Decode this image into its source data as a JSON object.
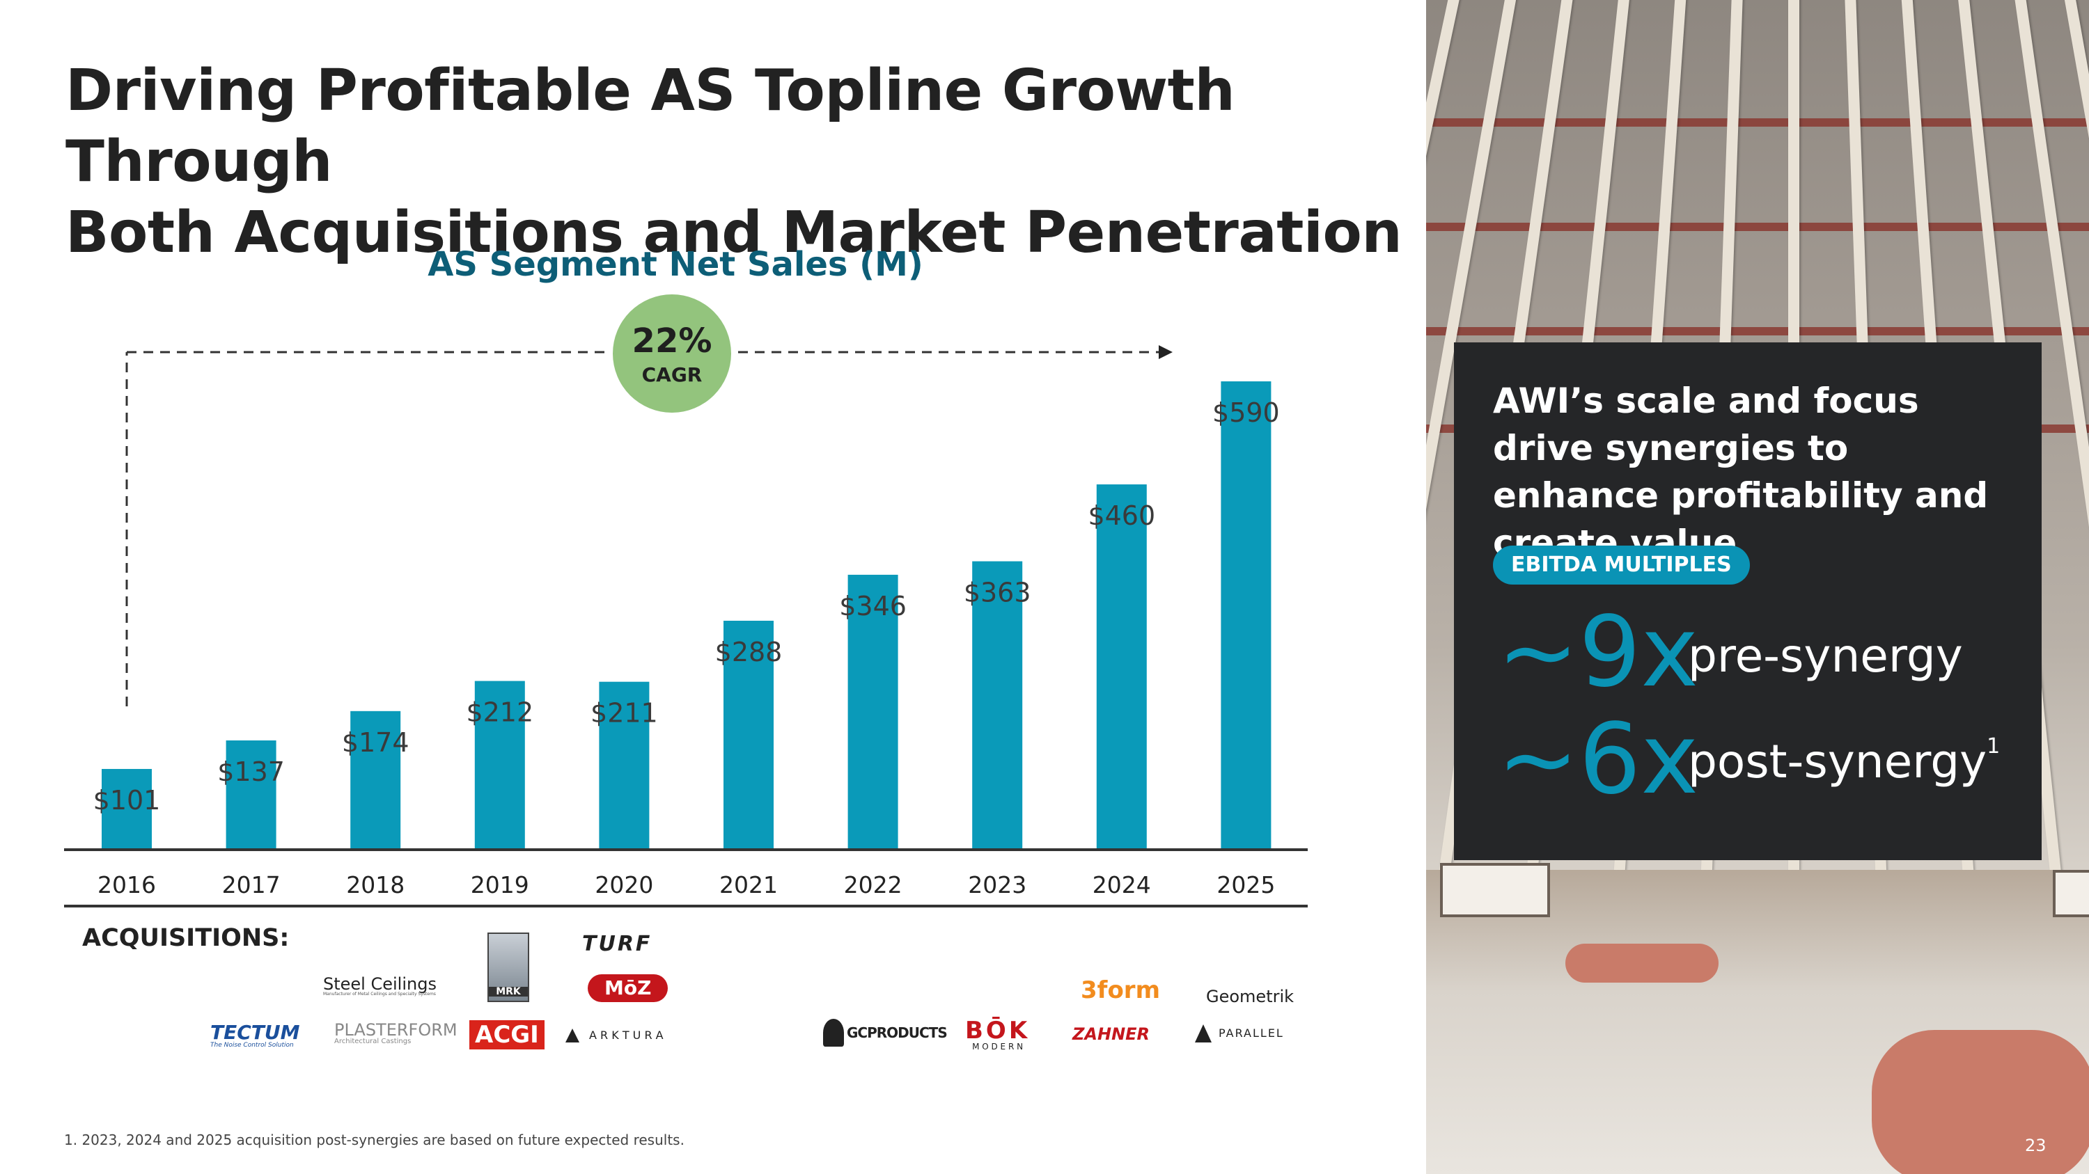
{
  "page": {
    "title_line1": "Driving Profitable AS Topline Growth Through",
    "title_line2": "Both Acquisitions and Market Penetration",
    "page_number": "23",
    "footnote": "1. 2023, 2024 and 2025 acquisition post-synergies are based on future expected results."
  },
  "chart_data": {
    "type": "bar",
    "title": "AS Segment Net Sales (M)",
    "categories": [
      "2016",
      "2017",
      "2018",
      "2019",
      "2020",
      "2021",
      "2022",
      "2023",
      "2024",
      "2025"
    ],
    "values": [
      101,
      137,
      174,
      212,
      211,
      288,
      346,
      363,
      460,
      590
    ],
    "value_labels": [
      "$101",
      "$137",
      "$174",
      "$212",
      "$211",
      "$288",
      "$346",
      "$363",
      "$460",
      "$590"
    ],
    "bar_color": "#0a9ab9",
    "ylim": [
      0,
      600
    ],
    "cagr": {
      "value": "22%",
      "label": "CAGR",
      "color": "#93c47d"
    }
  },
  "acquisitions": {
    "label": "ACQUISITIONS:",
    "logos": [
      {
        "name": "tectum-logo",
        "text": "TECTUM",
        "sub": "The Noise Control Solution",
        "color": "#1a4f9c"
      },
      {
        "name": "steel-ceilings-logo",
        "text": "Steel Ceilings",
        "sub": "Manufacturer of Metal Ceilings and Specialty Systems",
        "color": "#222222"
      },
      {
        "name": "plasterform-logo",
        "text": "PLASTERFORM",
        "sub": "Architectural Castings",
        "color": "#777777"
      },
      {
        "name": "mrk-logo",
        "text": "MRK",
        "color": "#444444"
      },
      {
        "name": "acgi-logo",
        "text": "ACGI",
        "color": "#d9241b"
      },
      {
        "name": "turf-logo",
        "text": "TURF",
        "color": "#222222"
      },
      {
        "name": "moz-logo",
        "text": "MōZ",
        "color": "#c4161c"
      },
      {
        "name": "arktura-logo",
        "text": "A R K T U R A",
        "color": "#222222"
      },
      {
        "name": "gc-products-logo",
        "text": "GCPRODUCTS",
        "color": "#222222"
      },
      {
        "name": "bok-modern-logo",
        "text": "BŌK",
        "sub": "M O D E R N",
        "color": "#c4161c"
      },
      {
        "name": "3form-logo",
        "text": "3form",
        "color": "#f28c1e"
      },
      {
        "name": "zahner-logo",
        "text": "ZAHNER",
        "color": "#c4161c"
      },
      {
        "name": "geometrik-logo",
        "text": "Geometrik",
        "color": "#222222"
      },
      {
        "name": "parallel-logo",
        "text": "PARALLEL",
        "color": "#222222"
      }
    ]
  },
  "callout": {
    "heading": "AWI’s scale and focus drive synergies to enhance profitability and create value",
    "pill": "EBITDA MULTIPLES",
    "pre_value": "~9x",
    "pre_label": "pre-synergy",
    "post_value": "~6x",
    "post_label": "post-synergy",
    "post_footnote": "1"
  }
}
